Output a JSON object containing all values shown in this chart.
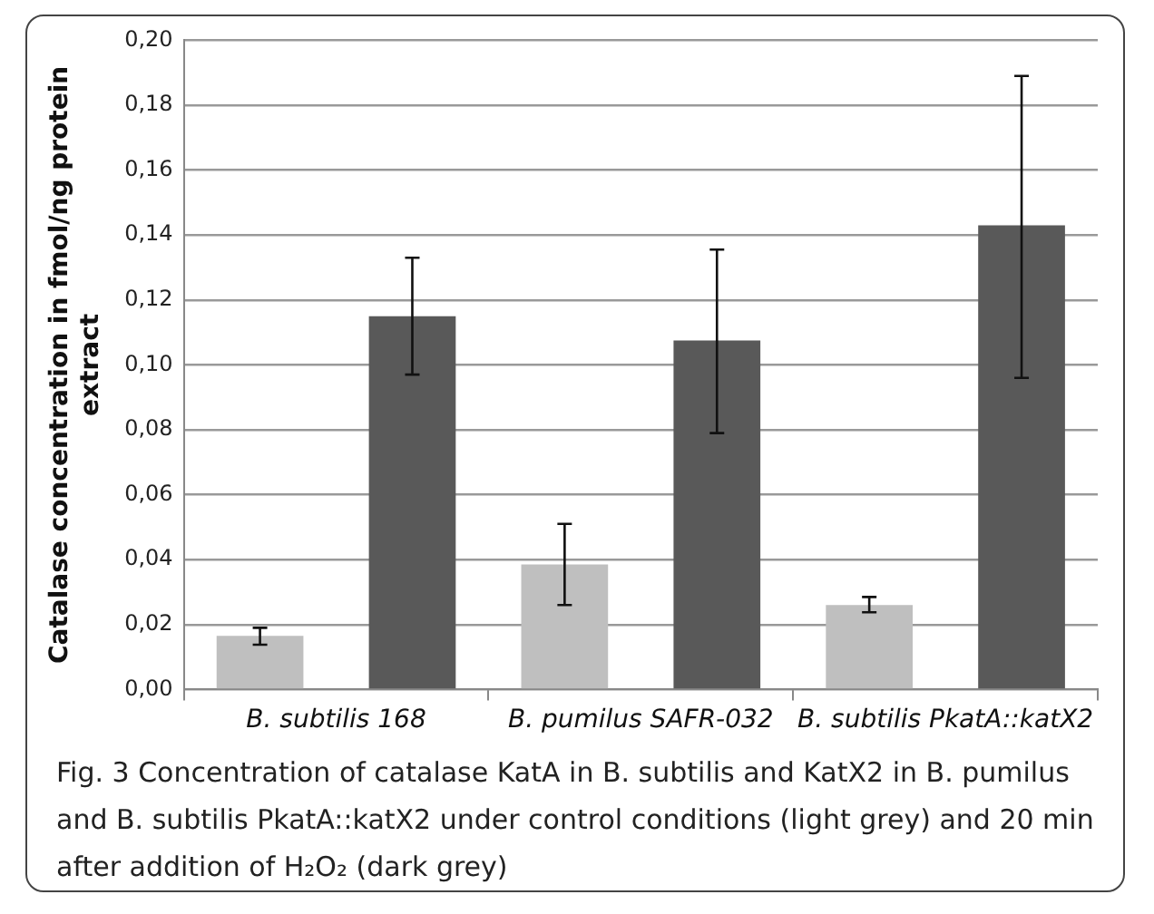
{
  "chart_data": {
    "type": "bar",
    "ylabel": "Catalase concentration in fmol/ng protein extract",
    "categories": [
      "B. subtilis 168",
      "B. pumilus SAFR-032",
      "B. subtilis PkatA::katX2"
    ],
    "series": [
      {
        "color": "#bfbfbf",
        "values": [
          0.0165,
          0.0385,
          0.026
        ],
        "errors": [
          [
            0.0138,
            0.019
          ],
          [
            0.026,
            0.051
          ],
          [
            0.0238,
            0.0285
          ]
        ]
      },
      {
        "color": "#595959",
        "values": [
          0.115,
          0.1075,
          0.143
        ],
        "errors": [
          [
            0.097,
            0.133
          ],
          [
            0.079,
            0.1355
          ],
          [
            0.096,
            0.189
          ]
        ]
      }
    ],
    "ylim": [
      0,
      0.2
    ],
    "yticks": [
      {
        "value": 0,
        "label": "0,00"
      },
      {
        "value": 0.02,
        "label": "0,02"
      },
      {
        "value": 0.04,
        "label": "0,04"
      },
      {
        "value": 0.06,
        "label": "0,06"
      },
      {
        "value": 0.08,
        "label": "0,08"
      },
      {
        "value": 0.1,
        "label": "0,10"
      },
      {
        "value": 0.12,
        "label": "0,12"
      },
      {
        "value": 0.14,
        "label": "0,14"
      },
      {
        "value": 0.16,
        "label": "0,16"
      },
      {
        "value": 0.18,
        "label": "0,18"
      },
      {
        "value": 0.2,
        "label": "0,20"
      }
    ],
    "grid": "y",
    "annotations": [
      "Fig. 3 Concentration of catalase KatA in B. subtilis and KatX2 in B. pumilus and B. subtilis PkatA::katX2 under control conditions (light grey) and 20 min after addition of H₂O₂ (dark grey)"
    ]
  }
}
